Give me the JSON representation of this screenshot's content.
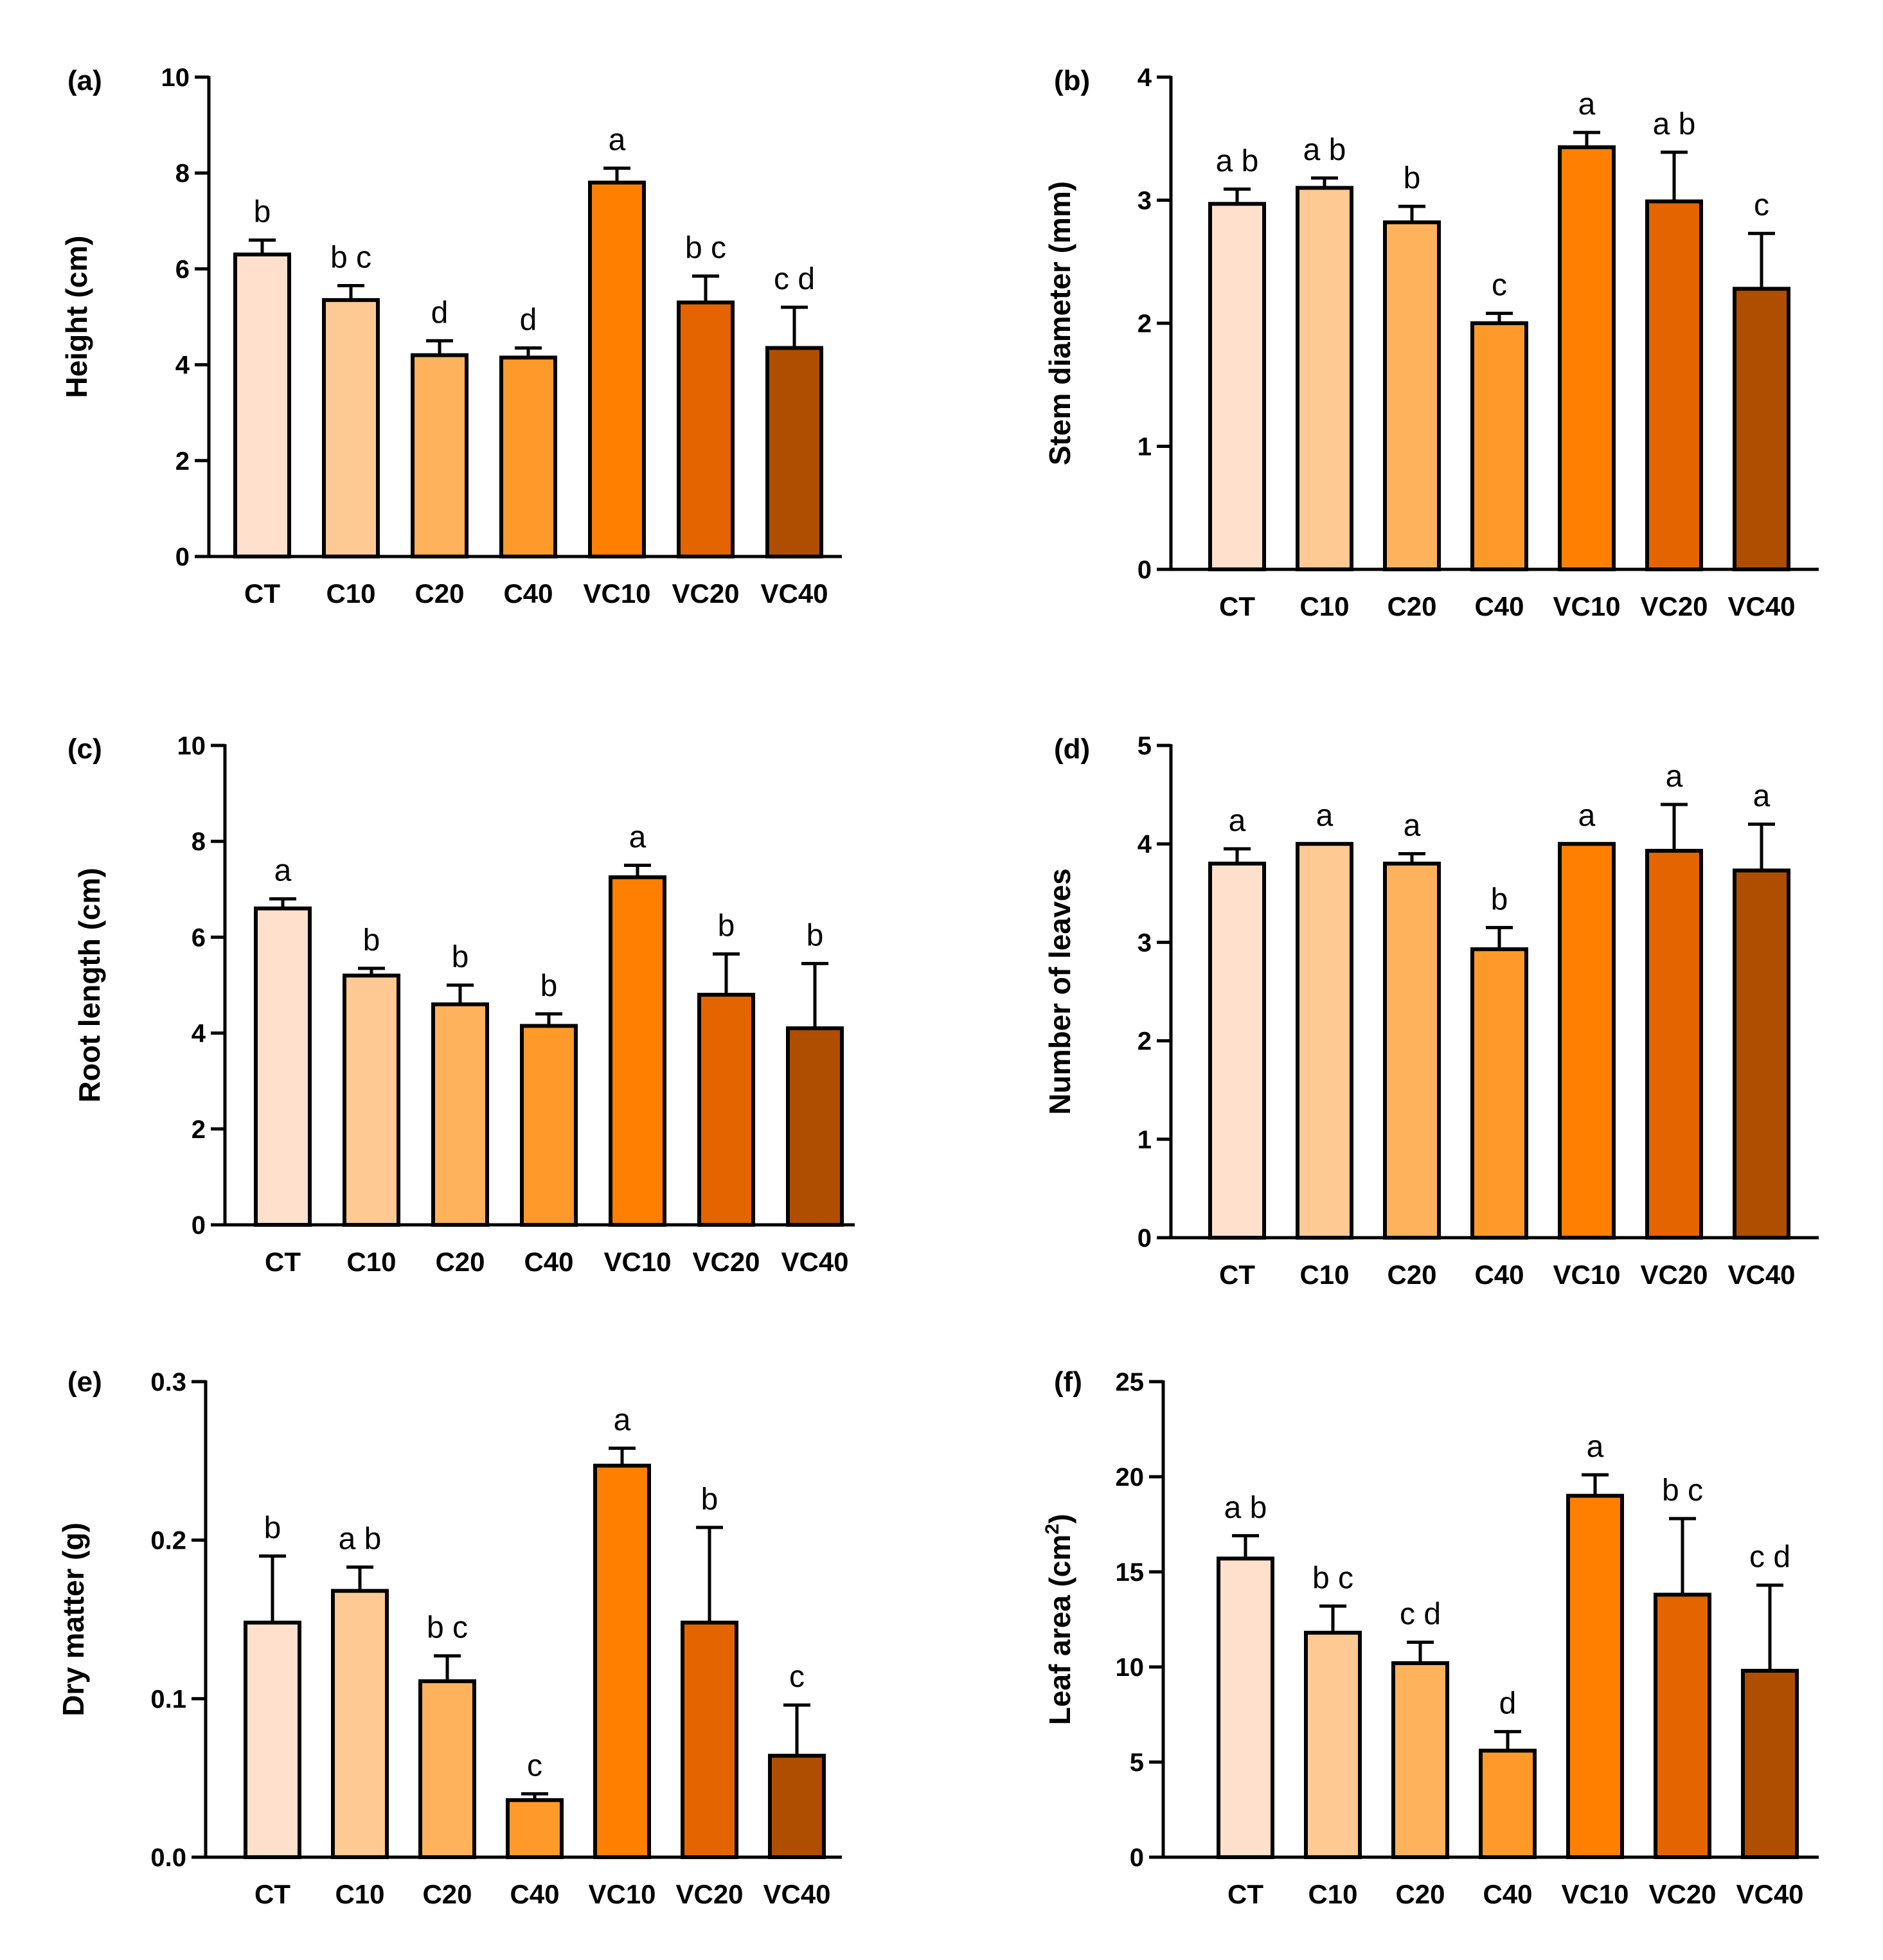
{
  "colors": [
    "#FFE0CC",
    "#FFC993",
    "#FFB25C",
    "#FF9A2A",
    "#FF7F00",
    "#E46400",
    "#B04E00"
  ],
  "chart_data": [
    {
      "id": "a",
      "type": "bar",
      "panel_label": "(a)",
      "ylabel": "Height (cm)",
      "categories": [
        "CT",
        "C10",
        "C20",
        "C40",
        "VC10",
        "VC20",
        "VC40"
      ],
      "values": [
        6.3,
        5.35,
        4.2,
        4.15,
        7.8,
        5.3,
        4.35
      ],
      "errors": [
        0.3,
        0.3,
        0.3,
        0.2,
        0.3,
        0.55,
        0.85
      ],
      "letters": [
        "b",
        "b c",
        "d",
        "d",
        "a",
        "b c",
        "c d"
      ],
      "ylim": [
        0,
        10
      ],
      "yticks": [
        0,
        2,
        4,
        6,
        8,
        10
      ],
      "ytick_labels": [
        "0",
        "2",
        "4",
        "6",
        "8",
        "10"
      ]
    },
    {
      "id": "b",
      "type": "bar",
      "panel_label": "(b)",
      "ylabel": "Stem diameter (mm)",
      "categories": [
        "CT",
        "C10",
        "C20",
        "C40",
        "VC10",
        "VC20",
        "VC40"
      ],
      "values": [
        2.97,
        3.1,
        2.82,
        2.0,
        3.43,
        2.99,
        2.28
      ],
      "errors": [
        0.12,
        0.08,
        0.13,
        0.08,
        0.12,
        0.4,
        0.45
      ],
      "letters": [
        "a b",
        "a b",
        "b",
        "c",
        "a",
        "a b",
        "c"
      ],
      "ylim": [
        0,
        4
      ],
      "yticks": [
        0,
        1,
        2,
        3,
        4
      ],
      "ytick_labels": [
        "0",
        "1",
        "2",
        "3",
        "4"
      ]
    },
    {
      "id": "c",
      "type": "bar",
      "panel_label": "(c)",
      "ylabel": "Root length (cm)",
      "categories": [
        "CT",
        "C10",
        "C20",
        "C40",
        "VC10",
        "VC20",
        "VC40"
      ],
      "values": [
        6.6,
        5.2,
        4.6,
        4.15,
        7.25,
        4.8,
        4.1
      ],
      "errors": [
        0.2,
        0.15,
        0.4,
        0.25,
        0.25,
        0.85,
        1.35
      ],
      "letters": [
        "a",
        "b",
        "b",
        "b",
        "a",
        "b",
        "b"
      ],
      "ylim": [
        0,
        10
      ],
      "yticks": [
        0,
        2,
        4,
        6,
        8,
        10
      ],
      "ytick_labels": [
        "0",
        "2",
        "4",
        "6",
        "8",
        "10"
      ]
    },
    {
      "id": "d",
      "type": "bar",
      "panel_label": "(d)",
      "ylabel": "Number of leaves",
      "categories": [
        "CT",
        "C10",
        "C20",
        "C40",
        "VC10",
        "VC20",
        "VC40"
      ],
      "values": [
        3.8,
        4.0,
        3.8,
        2.93,
        4.0,
        3.93,
        3.73
      ],
      "errors": [
        0.15,
        0.0,
        0.1,
        0.22,
        0.0,
        0.47,
        0.47
      ],
      "letters": [
        "a",
        "a",
        "a",
        "b",
        "a",
        "a",
        "a"
      ],
      "ylim": [
        0,
        5
      ],
      "yticks": [
        0,
        1,
        2,
        3,
        4,
        5
      ],
      "ytick_labels": [
        "0",
        "1",
        "2",
        "3",
        "4",
        "5"
      ]
    },
    {
      "id": "e",
      "type": "bar",
      "panel_label": "(e)",
      "ylabel": "Dry matter (g)",
      "categories": [
        "CT",
        "C10",
        "C20",
        "C40",
        "VC10",
        "VC20",
        "VC40"
      ],
      "values": [
        0.148,
        0.168,
        0.111,
        0.036,
        0.247,
        0.148,
        0.064
      ],
      "errors": [
        0.042,
        0.015,
        0.016,
        0.004,
        0.011,
        0.06,
        0.032
      ],
      "letters": [
        "b",
        "a b",
        "b c",
        "c",
        "a",
        "b",
        "c"
      ],
      "ylim": [
        0,
        0.3
      ],
      "yticks": [
        0,
        0.1,
        0.2,
        0.3
      ],
      "ytick_labels": [
        "0.0",
        "0.1",
        "0.2",
        "0.3"
      ]
    },
    {
      "id": "f",
      "type": "bar",
      "panel_label": "(f)",
      "ylabel": "Leaf area (cm",
      "ylabel_sup": "2",
      "ylabel_end": ")",
      "categories": [
        "CT",
        "C10",
        "C20",
        "C40",
        "VC10",
        "VC20",
        "VC40"
      ],
      "values": [
        15.7,
        11.8,
        10.2,
        5.6,
        19.0,
        13.8,
        9.8
      ],
      "errors": [
        1.2,
        1.4,
        1.1,
        1.0,
        1.1,
        4.0,
        4.5
      ],
      "letters": [
        "a b",
        "b c",
        "c d",
        "d",
        "a",
        "b c",
        "c d"
      ],
      "ylim": [
        0,
        25
      ],
      "yticks": [
        0,
        5,
        10,
        15,
        20,
        25
      ],
      "ytick_labels": [
        "0",
        "5",
        "10",
        "15",
        "20",
        "25"
      ]
    }
  ]
}
